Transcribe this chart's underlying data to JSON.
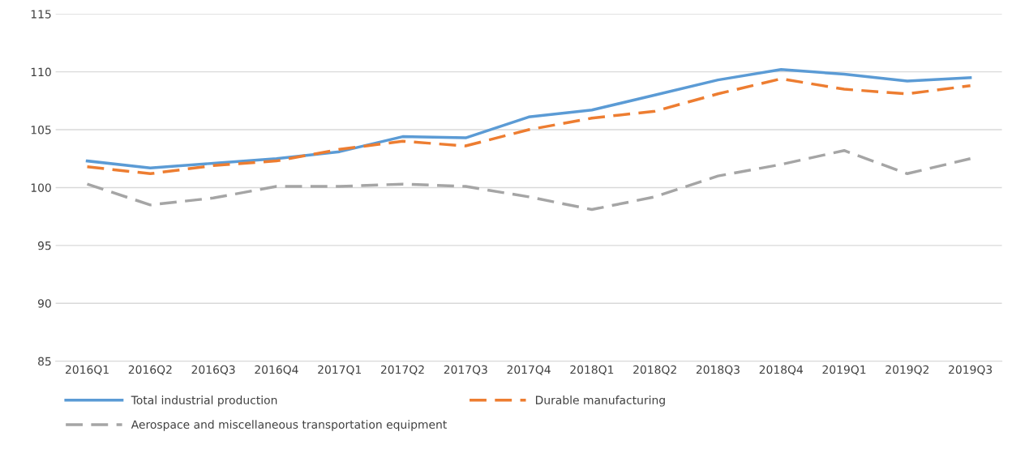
{
  "chart_data": {
    "type": "line",
    "categories": [
      "2016Q1",
      "2016Q2",
      "2016Q3",
      "2016Q4",
      "2017Q1",
      "2017Q2",
      "2017Q3",
      "2017Q4",
      "2018Q1",
      "2018Q2",
      "2018Q3",
      "2018Q4",
      "2019Q1",
      "2019Q2",
      "2019Q3"
    ],
    "series": [
      {
        "name": "Total industrial production",
        "color": "#5b9bd5",
        "line_style": "solid",
        "values": [
          102.3,
          101.7,
          102.1,
          102.5,
          103.1,
          104.4,
          104.3,
          106.1,
          106.7,
          108.0,
          109.3,
          110.2,
          109.8,
          109.2,
          109.5
        ]
      },
      {
        "name": "Durable manufacturing",
        "color": "#ed7d31",
        "line_style": "dashed",
        "values": [
          101.8,
          101.2,
          101.9,
          102.3,
          103.3,
          104.0,
          103.6,
          105.0,
          106.0,
          106.6,
          108.1,
          109.4,
          108.5,
          108.1,
          108.8
        ]
      },
      {
        "name": "Aerospace and miscellaneous transportation equipment",
        "color": "#a5a5a5",
        "line_style": "dashed",
        "values": [
          100.3,
          98.5,
          99.1,
          100.1,
          100.1,
          100.3,
          100.1,
          99.2,
          98.1,
          99.2,
          101.0,
          102.0,
          103.2,
          101.2,
          102.5
        ]
      }
    ],
    "ylim": [
      85,
      115
    ],
    "yticks": [
      85,
      90,
      95,
      100,
      105,
      110,
      115
    ],
    "grid": "y",
    "legend": "bottom",
    "marker": "none"
  }
}
